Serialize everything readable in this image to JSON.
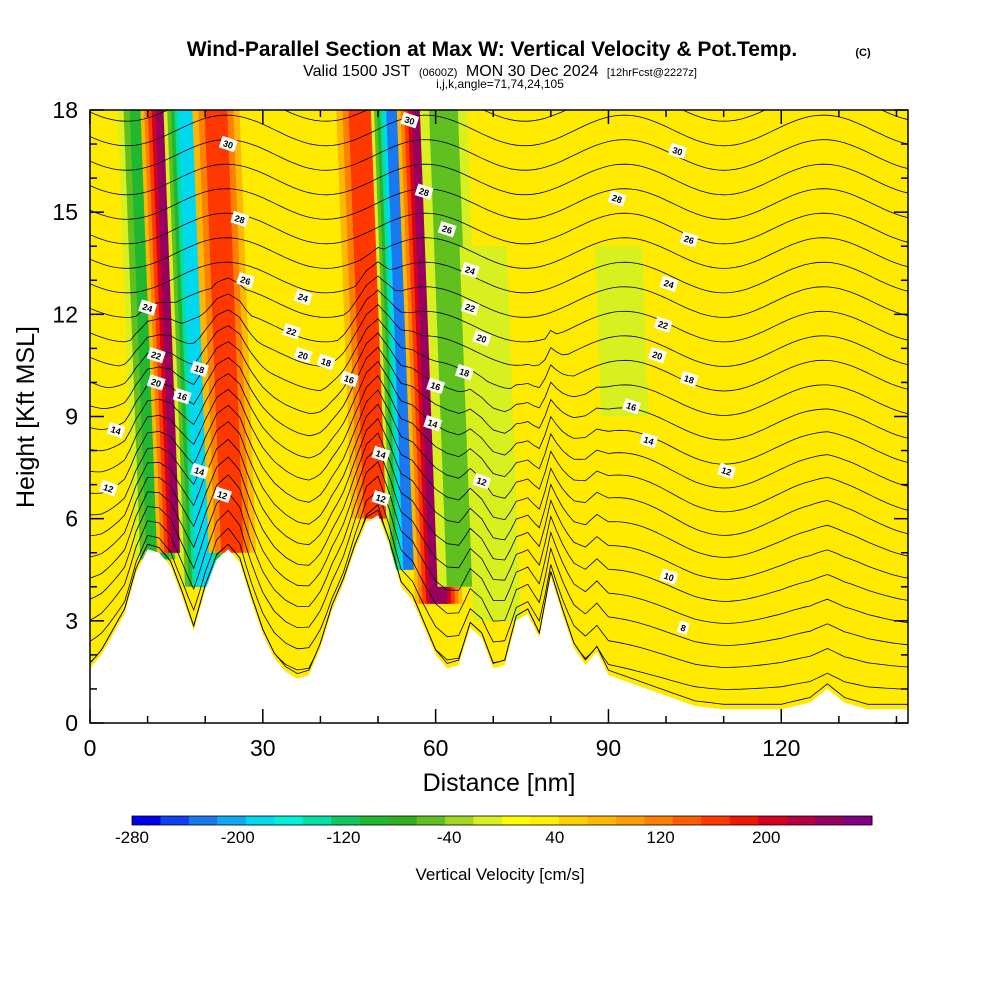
{
  "header": {
    "title": "Wind-Parallel Section at Max W: Vertical Velocity & Pot.Temp.",
    "copyright": "(C)",
    "valid_prefix": "Valid 1500 JST",
    "valid_utc": "(0600Z)",
    "valid_date": "MON 30 Dec 2024",
    "forecast": "[12hrFcst@2227z]",
    "indices": "i,j,k,angle=71,74,24,105"
  },
  "chart_data": {
    "type": "heatmap",
    "xlabel": "Distance [nm]",
    "ylabel": "Height [Kft MSL]",
    "xlim": [
      0,
      142
    ],
    "ylim": [
      0,
      18
    ],
    "x_ticks": [
      0,
      30,
      60,
      90,
      120
    ],
    "y_ticks": [
      0,
      3,
      6,
      9,
      12,
      15,
      18
    ],
    "x_tick_labels": [
      "0",
      "30",
      "60",
      "90",
      "120"
    ],
    "y_tick_labels": [
      "0",
      "3",
      "6",
      "9",
      "12",
      "15",
      "18"
    ],
    "colorbar": {
      "label": "Vertical Velocity [cm/s]",
      "tick_values": [
        -280,
        -200,
        -120,
        -40,
        40,
        120,
        200
      ],
      "tick_labels": [
        "-280",
        "-200",
        "-120",
        "-40",
        "40",
        "120",
        "200"
      ],
      "colors": [
        "#0000ee",
        "#1040f0",
        "#1a78f0",
        "#10a8f0",
        "#00d8f0",
        "#00f0d8",
        "#00e0a0",
        "#10c860",
        "#20b830",
        "#30b020",
        "#60c020",
        "#a0d820",
        "#d8f020",
        "#ffff00",
        "#fff000",
        "#ffd000",
        "#ffb800",
        "#ff9c00",
        "#ff8000",
        "#ff5c00",
        "#ff3800",
        "#f01800",
        "#d80020",
        "#b80040",
        "#980060",
        "#800080"
      ]
    },
    "terrain_profile": {
      "distance_nm": [
        0,
        2,
        4,
        6,
        8,
        10,
        12,
        14,
        16,
        18,
        20,
        22,
        24,
        26,
        28,
        30,
        32,
        34,
        36,
        38,
        40,
        42,
        44,
        46,
        48,
        50,
        52,
        54,
        56,
        58,
        60,
        62,
        64,
        66,
        68,
        70,
        72,
        74,
        76,
        78,
        80,
        82,
        84,
        86,
        88,
        90,
        95,
        100,
        105,
        110,
        115,
        120,
        125,
        128,
        131,
        135,
        142
      ],
      "height_kft": [
        1.6,
        2.0,
        2.6,
        3.2,
        4.4,
        5.1,
        5.0,
        4.6,
        3.7,
        2.7,
        3.9,
        4.8,
        5.1,
        4.7,
        3.6,
        2.6,
        1.9,
        1.5,
        1.3,
        1.4,
        2.2,
        3.3,
        4.1,
        5.1,
        5.9,
        6.1,
        5.2,
        4.0,
        3.6,
        2.8,
        2.0,
        1.6,
        1.7,
        2.8,
        2.5,
        1.6,
        1.7,
        3.0,
        3.2,
        2.5,
        4.3,
        3.2,
        2.2,
        1.7,
        2.1,
        1.4,
        1.1,
        0.8,
        0.5,
        0.4,
        0.4,
        0.4,
        0.6,
        1.0,
        0.6,
        0.4,
        0.4
      ]
    },
    "vertical_velocity_bands": [
      {
        "x_nm": 11.5,
        "w_cms": -120,
        "from_kft": 4.8,
        "to_kft": 18
      },
      {
        "x_nm": 15.5,
        "w_cms": 200,
        "from_kft": 5.0,
        "to_kft": 18
      },
      {
        "x_nm": 19.5,
        "w_cms": -200,
        "from_kft": 4.0,
        "to_kft": 18
      },
      {
        "x_nm": 24.5,
        "w_cms": 120,
        "from_kft": 5.0,
        "to_kft": 18
      },
      {
        "x_nm": 49.5,
        "w_cms": 120,
        "from_kft": 6.0,
        "to_kft": 18
      },
      {
        "x_nm": 55.5,
        "w_cms": -240,
        "from_kft": 4.5,
        "to_kft": 18
      },
      {
        "x_nm": 60.0,
        "w_cms": 200,
        "from_kft": 3.5,
        "to_kft": 18
      },
      {
        "x_nm": 64.0,
        "w_cms": -80,
        "from_kft": 4.0,
        "to_kft": 18
      },
      {
        "x_nm": 70.0,
        "w_cms": -60,
        "from_kft": 3.0,
        "to_kft": 14
      },
      {
        "x_nm": 93.5,
        "w_cms": -40,
        "from_kft": 9.0,
        "to_kft": 14
      }
    ],
    "potential_temperature_labels": [
      {
        "text": "30",
        "x_nm": 24,
        "y_kft": 17.0
      },
      {
        "text": "28",
        "x_nm": 26,
        "y_kft": 14.8
      },
      {
        "text": "26",
        "x_nm": 27,
        "y_kft": 13.0
      },
      {
        "text": "24",
        "x_nm": 10,
        "y_kft": 12.2
      },
      {
        "text": "24",
        "x_nm": 37,
        "y_kft": 12.5
      },
      {
        "text": "22",
        "x_nm": 11.5,
        "y_kft": 10.8
      },
      {
        "text": "22",
        "x_nm": 35,
        "y_kft": 11.5
      },
      {
        "text": "20",
        "x_nm": 11.5,
        "y_kft": 10.0
      },
      {
        "text": "20",
        "x_nm": 37,
        "y_kft": 10.8
      },
      {
        "text": "18",
        "x_nm": 19,
        "y_kft": 10.4
      },
      {
        "text": "18",
        "x_nm": 41,
        "y_kft": 10.6
      },
      {
        "text": "16",
        "x_nm": 16,
        "y_kft": 9.6
      },
      {
        "text": "16",
        "x_nm": 45,
        "y_kft": 10.1
      },
      {
        "text": "14",
        "x_nm": 4.5,
        "y_kft": 8.6
      },
      {
        "text": "14",
        "x_nm": 19,
        "y_kft": 7.4
      },
      {
        "text": "12",
        "x_nm": 3.2,
        "y_kft": 6.9
      },
      {
        "text": "12",
        "x_nm": 23,
        "y_kft": 6.7
      },
      {
        "text": "30",
        "x_nm": 55.5,
        "y_kft": 17.7
      },
      {
        "text": "28",
        "x_nm": 58,
        "y_kft": 15.6
      },
      {
        "text": "26",
        "x_nm": 62,
        "y_kft": 14.5
      },
      {
        "text": "24",
        "x_nm": 66,
        "y_kft": 13.3
      },
      {
        "text": "22",
        "x_nm": 66,
        "y_kft": 12.2
      },
      {
        "text": "20",
        "x_nm": 68,
        "y_kft": 11.3
      },
      {
        "text": "18",
        "x_nm": 65,
        "y_kft": 10.3
      },
      {
        "text": "16",
        "x_nm": 60,
        "y_kft": 9.9
      },
      {
        "text": "14",
        "x_nm": 59.5,
        "y_kft": 8.8
      },
      {
        "text": "14",
        "x_nm": 50.5,
        "y_kft": 7.9
      },
      {
        "text": "12",
        "x_nm": 50.5,
        "y_kft": 6.6
      },
      {
        "text": "12",
        "x_nm": 68,
        "y_kft": 7.1
      },
      {
        "text": "30",
        "x_nm": 102,
        "y_kft": 16.8
      },
      {
        "text": "28",
        "x_nm": 91.5,
        "y_kft": 15.4
      },
      {
        "text": "26",
        "x_nm": 104,
        "y_kft": 14.2
      },
      {
        "text": "24",
        "x_nm": 100.5,
        "y_kft": 12.9
      },
      {
        "text": "22",
        "x_nm": 99.5,
        "y_kft": 11.7
      },
      {
        "text": "20",
        "x_nm": 98.5,
        "y_kft": 10.8
      },
      {
        "text": "18",
        "x_nm": 104,
        "y_kft": 10.1
      },
      {
        "text": "16",
        "x_nm": 94,
        "y_kft": 9.3
      },
      {
        "text": "14",
        "x_nm": 97,
        "y_kft": 8.3
      },
      {
        "text": "12",
        "x_nm": 110.5,
        "y_kft": 7.4
      },
      {
        "text": "10",
        "x_nm": 100.5,
        "y_kft": 4.3
      },
      {
        "text": "8",
        "x_nm": 103,
        "y_kft": 2.8
      }
    ]
  }
}
